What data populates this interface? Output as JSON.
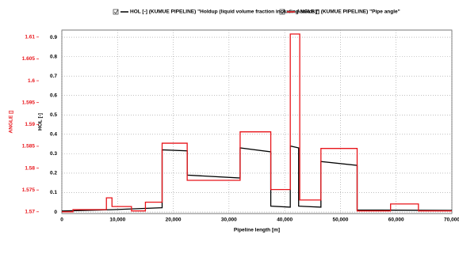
{
  "chart_data": {
    "type": "line",
    "legend": "top",
    "grid": true,
    "xlabel": "Pipeline length [m]",
    "ylabel": "ANGLE []",
    "y2label": "HOL [-]",
    "xlim": [
      0,
      70000
    ],
    "xticks": [
      0,
      {
        "value": 10000,
        "label": "10,000"
      },
      {
        "value": 20000,
        "label": "20,000"
      },
      {
        "value": 30000,
        "label": "30,000"
      },
      {
        "value": 40000,
        "label": "40,000"
      },
      {
        "value": 50000,
        "label": "50,000"
      },
      {
        "value": 60000,
        "label": "60,000"
      },
      {
        "value": 70000,
        "label": "70,000"
      }
    ],
    "ylim": [
      1.5696,
      1.6116
    ],
    "yticks": [
      1.57,
      1.575,
      1.58,
      1.585,
      1.59,
      1.595,
      1.6,
      1.605,
      1.61
    ],
    "y2lim": [
      -0.008,
      0.937
    ],
    "y2ticks": [
      0,
      0.1,
      0.2,
      0.3,
      0.4,
      0.5,
      0.6,
      0.7,
      0.8,
      0.9
    ],
    "series": [
      {
        "name": "HOL [-] (KUMUE PIPELINE) \"Holdup (liquid volume fraction including solids)\"",
        "color": "#000000",
        "axis": "y2",
        "x": [
          0,
          9000,
          18000,
          18000,
          22500,
          22500,
          32000,
          32000,
          37500,
          37500,
          41000,
          41000,
          42500,
          42500,
          46500,
          46500,
          53000,
          53000,
          70000
        ],
        "values": [
          0.005,
          0.012,
          0.022,
          0.32,
          0.315,
          0.19,
          0.175,
          0.33,
          0.31,
          0.03,
          0.025,
          0.34,
          0.33,
          0.03,
          0.025,
          0.26,
          0.24,
          0.01,
          0.008
        ]
      },
      {
        "name": "ANGLE [] (KUMUE PIPELINE) \"Pipe angle\"",
        "color": "#e8141a",
        "x": [
          0,
          2000,
          2000,
          8000,
          8000,
          9000,
          9000,
          12500,
          12500,
          15000,
          15000,
          18000,
          18000,
          22500,
          22500,
          32000,
          32000,
          37500,
          37500,
          41000,
          41000,
          42700,
          42700,
          46500,
          46500,
          53000,
          53000,
          59000,
          59000,
          64000,
          64000,
          70000
        ],
        "values": [
          1.57,
          1.57,
          1.5705,
          1.5705,
          1.5732,
          1.5732,
          1.5712,
          1.5712,
          1.5702,
          1.5702,
          1.5722,
          1.5722,
          1.5857,
          1.5857,
          1.5772,
          1.5772,
          1.5883,
          1.5883,
          1.5751,
          1.5751,
          1.6107,
          1.6107,
          1.5727,
          1.5727,
          1.5845,
          1.5845,
          1.5702,
          1.5702,
          1.5718,
          1.5718,
          1.5702,
          1.5702
        ]
      }
    ]
  }
}
